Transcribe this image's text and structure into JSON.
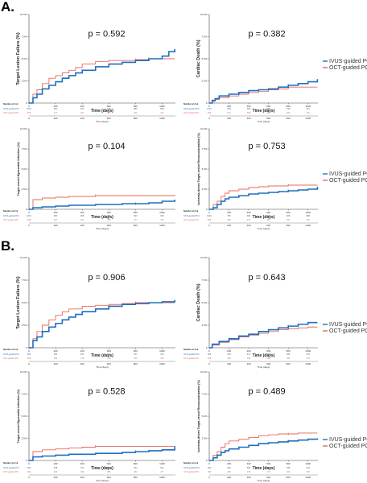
{
  "sections": [
    "A.",
    "B."
  ],
  "legend": {
    "items": [
      {
        "label": "IVUS-guided PCI",
        "color": "#1f6fbf"
      },
      {
        "label": "OCT-guided PCI",
        "color": "#e8685a"
      }
    ]
  },
  "risk": {
    "title": "Number at risk",
    "groups": [
      "IVUS-guided PCI",
      "OCT-guided PCI"
    ]
  },
  "chart_data": [
    {
      "type": "line",
      "section": "A.",
      "ylabel": "Target Lesion Failure (%)",
      "xlabel": "Time (days)",
      "p_value": "p = 0.592",
      "ylim": [
        0,
        10
      ],
      "yticks": [
        "0",
        "2.5%",
        "5.0%",
        "7.5%",
        "10.0%"
      ],
      "xlim": [
        0,
        1100
      ],
      "xticks": [
        "0",
        "200",
        "400",
        "600",
        "800",
        "1000"
      ],
      "series": [
        {
          "name": "IVUS-guided PCI",
          "color": "#1f6fbf",
          "x": [
            0,
            30,
            60,
            100,
            150,
            200,
            250,
            300,
            350,
            400,
            500,
            600,
            700,
            800,
            900,
            1000,
            1050,
            1095
          ],
          "y": [
            0,
            0.6,
            1.0,
            1.6,
            2.0,
            2.4,
            2.8,
            3.1,
            3.4,
            3.7,
            4.1,
            4.4,
            4.6,
            4.8,
            5.0,
            5.3,
            5.8,
            6.1
          ]
        },
        {
          "name": "OCT-guided PCI",
          "color": "#e8685a",
          "x": [
            0,
            30,
            60,
            100,
            150,
            200,
            250,
            300,
            350,
            400,
            500,
            600,
            700,
            800,
            900,
            1000,
            1095
          ],
          "y": [
            0,
            1.0,
            1.5,
            2.2,
            2.8,
            3.1,
            3.4,
            3.7,
            4.0,
            4.4,
            4.7,
            4.8,
            4.8,
            4.9,
            5.0,
            5.0,
            5.0
          ]
        }
      ],
      "at_risk": {
        "IVUS-guided PCI": [
          "1010",
          "950",
          "932",
          "915",
          "889",
          "868"
        ],
        "OCT-guided PCI": [
          "508",
          "477",
          "467",
          "456",
          "442",
          "421"
        ]
      }
    },
    {
      "type": "line",
      "section": "A.",
      "ylabel": "Cardiac Death (%)",
      "xlabel": "Time (days)",
      "p_value": "p = 0.382",
      "ylim": [
        0,
        10
      ],
      "yticks": [
        "0",
        "2.5%",
        "5.0%",
        "7.5%",
        "10.0%"
      ],
      "xlim": [
        0,
        1100
      ],
      "xticks": [
        "0",
        "200",
        "400",
        "600",
        "800",
        "1000"
      ],
      "series": [
        {
          "name": "IVUS-guided PCI",
          "color": "#1f6fbf",
          "x": [
            0,
            30,
            60,
            100,
            200,
            300,
            400,
            500,
            600,
            700,
            800,
            900,
            1000,
            1095
          ],
          "y": [
            0,
            0.3,
            0.5,
            0.8,
            1.0,
            1.2,
            1.4,
            1.5,
            1.6,
            1.8,
            2.0,
            2.2,
            2.4,
            2.7
          ]
        },
        {
          "name": "OCT-guided PCI",
          "color": "#e8685a",
          "x": [
            0,
            30,
            60,
            100,
            200,
            300,
            400,
            500,
            600,
            700,
            800,
            900,
            1000,
            1095
          ],
          "y": [
            0,
            0.2,
            0.4,
            0.6,
            0.8,
            1.0,
            1.2,
            1.3,
            1.5,
            1.6,
            1.8,
            1.8,
            1.8,
            1.8
          ]
        }
      ],
      "at_risk": {
        "IVUS-guided PCI": [
          "1010",
          "980",
          "968",
          "959",
          "939",
          "921"
        ],
        "OCT-guided PCI": [
          "508",
          "501",
          "498",
          "490",
          "482",
          "470"
        ]
      }
    },
    {
      "type": "line",
      "section": "A.",
      "ylabel": "Target-vessel Myocardial Infarction (%)",
      "xlabel": "Time (days)",
      "p_value": "p = 0.104",
      "ylim": [
        0,
        10
      ],
      "yticks": [
        "0",
        "2.5%",
        "5.0%",
        "7.5%",
        "10.0%"
      ],
      "xlim": [
        0,
        1100
      ],
      "xticks": [
        "0",
        "200",
        "400",
        "600",
        "800",
        "1000"
      ],
      "series": [
        {
          "name": "IVUS-guided PCI",
          "color": "#1f6fbf",
          "x": [
            0,
            30,
            100,
            200,
            300,
            400,
            500,
            600,
            700,
            800,
            900,
            1000,
            1095
          ],
          "y": [
            0,
            0.2,
            0.3,
            0.4,
            0.5,
            0.5,
            0.6,
            0.6,
            0.7,
            0.7,
            0.8,
            1.0,
            1.2
          ]
        },
        {
          "name": "OCT-guided PCI",
          "color": "#e8685a",
          "x": [
            0,
            30,
            100,
            200,
            300,
            400,
            500,
            700,
            900,
            1095
          ],
          "y": [
            0,
            1.2,
            1.4,
            1.5,
            1.6,
            1.6,
            1.7,
            1.7,
            1.7,
            1.8
          ]
        }
      ],
      "at_risk": {
        "IVUS-guided PCI": [
          "1010",
          "980",
          "968",
          "951",
          "933",
          "915"
        ],
        "OCT-guided PCI": [
          "508",
          "497",
          "491",
          "483",
          "477",
          "470"
        ]
      }
    },
    {
      "type": "line",
      "section": "A.",
      "ylabel": "Ischemia-driven Target-vessel Revascularization (%)",
      "xlabel": "Time (days)",
      "p_value": "p = 0.753",
      "ylim": [
        0,
        10
      ],
      "yticks": [
        "0",
        "2.5%",
        "5.0%",
        "7.5%",
        "10.0%"
      ],
      "xlim": [
        0,
        1100
      ],
      "xticks": [
        "0",
        "200",
        "400",
        "600",
        "800",
        "1000"
      ],
      "series": [
        {
          "name": "IVUS-guided PCI",
          "color": "#1f6fbf",
          "x": [
            0,
            40,
            80,
            120,
            160,
            200,
            300,
            400,
            500,
            600,
            700,
            800,
            900,
            1000,
            1095
          ],
          "y": [
            0,
            0.2,
            0.6,
            1.0,
            1.3,
            1.5,
            1.7,
            1.9,
            2.0,
            2.1,
            2.2,
            2.3,
            2.4,
            2.5,
            2.8
          ]
        },
        {
          "name": "OCT-guided PCI",
          "color": "#e8685a",
          "x": [
            0,
            40,
            80,
            120,
            160,
            200,
            300,
            400,
            500,
            600,
            700,
            800,
            900,
            1000,
            1095
          ],
          "y": [
            0,
            0.6,
            1.0,
            1.6,
            2.0,
            2.3,
            2.5,
            2.7,
            2.8,
            2.9,
            2.9,
            3.0,
            3.0,
            3.0,
            3.0
          ]
        }
      ],
      "at_risk": {
        "IVUS-guided PCI": [
          "1010",
          "955",
          "939",
          "928",
          "908",
          "888"
        ],
        "OCT-guided PCI": [
          "508",
          "482",
          "474",
          "463",
          "451",
          "440"
        ]
      }
    },
    {
      "type": "line",
      "section": "B.",
      "ylabel": "Target Lesion Failure (%)",
      "xlabel": "Time (days)",
      "p_value": "p = 0.906",
      "ylim": [
        0,
        10
      ],
      "yticks": [
        "0",
        "2.5%",
        "5.0%",
        "7.5%",
        "10.0%"
      ],
      "xlim": [
        0,
        1100
      ],
      "xticks": [
        "0",
        "200",
        "400",
        "600",
        "800",
        "1000"
      ],
      "series": [
        {
          "name": "IVUS-guided PCI",
          "color": "#1f6fbf",
          "x": [
            0,
            30,
            60,
            100,
            150,
            200,
            250,
            300,
            350,
            400,
            500,
            600,
            700,
            800,
            900,
            1000,
            1095
          ],
          "y": [
            0,
            0.8,
            1.2,
            1.8,
            2.3,
            2.7,
            3.1,
            3.4,
            3.7,
            4.0,
            4.3,
            4.6,
            4.8,
            4.9,
            5.0,
            5.1,
            5.3
          ]
        },
        {
          "name": "OCT-guided PCI",
          "color": "#e8685a",
          "x": [
            0,
            30,
            60,
            100,
            150,
            200,
            250,
            300,
            400,
            500,
            600,
            700,
            800,
            900,
            1000,
            1095
          ],
          "y": [
            0,
            1.0,
            1.8,
            2.5,
            3.1,
            3.6,
            4.0,
            4.3,
            4.6,
            4.7,
            4.8,
            4.9,
            5.0,
            5.0,
            5.0,
            5.0
          ]
        }
      ],
      "at_risk": {
        "IVUS-guided PCI": [
          "596",
          "562",
          "551",
          "541",
          "527",
          "514"
        ],
        "OCT-guided PCI": [
          "299",
          "282",
          "276",
          "270",
          "262",
          "250"
        ]
      }
    },
    {
      "type": "line",
      "section": "B.",
      "ylabel": "Cardiac Death (%)",
      "xlabel": "Time (days)",
      "p_value": "p = 0.643",
      "ylim": [
        0,
        10
      ],
      "yticks": [
        "0",
        "2.5%",
        "5.0%",
        "7.5%",
        "10.0%"
      ],
      "xlim": [
        0,
        1100
      ],
      "xticks": [
        "0",
        "200",
        "400",
        "600",
        "800",
        "1000"
      ],
      "series": [
        {
          "name": "IVUS-guided PCI",
          "color": "#1f6fbf",
          "x": [
            0,
            30,
            100,
            200,
            300,
            400,
            500,
            600,
            700,
            800,
            900,
            1000,
            1095
          ],
          "y": [
            0,
            0.4,
            0.7,
            1.0,
            1.3,
            1.5,
            1.8,
            2.0,
            2.2,
            2.4,
            2.6,
            2.8,
            2.8
          ]
        },
        {
          "name": "OCT-guided PCI",
          "color": "#e8685a",
          "x": [
            0,
            30,
            100,
            200,
            300,
            400,
            500,
            600,
            700,
            800,
            900,
            1000,
            1095
          ],
          "y": [
            0,
            0.3,
            0.6,
            0.9,
            1.2,
            1.4,
            1.6,
            1.8,
            2.0,
            2.1,
            2.2,
            2.3,
            2.3
          ]
        }
      ],
      "at_risk": {
        "IVUS-guided PCI": [
          "596",
          "578",
          "571",
          "565",
          "554",
          "543"
        ],
        "OCT-guided PCI": [
          "299",
          "295",
          "292",
          "288",
          "283",
          "276"
        ]
      }
    },
    {
      "type": "line",
      "section": "B.",
      "ylabel": "Target-vessel Myocardial Infarction (%)",
      "xlabel": "Time (days)",
      "p_value": "p = 0.528",
      "ylim": [
        0,
        10
      ],
      "yticks": [
        "0",
        "2.5%",
        "5.0%",
        "7.5%",
        "10.0%"
      ],
      "xlim": [
        0,
        1100
      ],
      "xticks": [
        "0",
        "200",
        "400",
        "600",
        "800",
        "1000"
      ],
      "series": [
        {
          "name": "IVUS-guided PCI",
          "color": "#1f6fbf",
          "x": [
            0,
            30,
            100,
            200,
            300,
            400,
            500,
            600,
            700,
            800,
            900,
            1000,
            1095
          ],
          "y": [
            0,
            0.4,
            0.5,
            0.6,
            0.7,
            0.7,
            0.8,
            0.8,
            0.9,
            1.0,
            1.1,
            1.2,
            1.6
          ]
        },
        {
          "name": "OCT-guided PCI",
          "color": "#e8685a",
          "x": [
            0,
            30,
            100,
            200,
            300,
            400,
            500,
            700,
            900,
            1095
          ],
          "y": [
            0,
            1.0,
            1.2,
            1.3,
            1.4,
            1.5,
            1.6,
            1.6,
            1.6,
            1.6
          ]
        }
      ],
      "at_risk": {
        "IVUS-guided PCI": [
          "596",
          "578",
          "571",
          "563",
          "552",
          "541"
        ],
        "OCT-guided PCI": [
          "299",
          "293",
          "290",
          "286",
          "282",
          "277"
        ]
      }
    },
    {
      "type": "line",
      "section": "B.",
      "ylabel": "Ischemia-driven Target-vessel Revascularization (%)",
      "xlabel": "Time (days)",
      "p_value": "p = 0.489",
      "ylim": [
        0,
        10
      ],
      "yticks": [
        "0",
        "2.5%",
        "5.0%",
        "7.5%",
        "10.0%"
      ],
      "xlim": [
        0,
        1100
      ],
      "xticks": [
        "0",
        "200",
        "400",
        "600",
        "800",
        "1000"
      ],
      "series": [
        {
          "name": "IVUS-guided PCI",
          "color": "#1f6fbf",
          "x": [
            0,
            40,
            80,
            120,
            160,
            200,
            300,
            400,
            500,
            600,
            700,
            800,
            900,
            1000,
            1095
          ],
          "y": [
            0,
            0.3,
            0.6,
            0.9,
            1.1,
            1.3,
            1.5,
            1.7,
            1.9,
            2.0,
            2.1,
            2.2,
            2.3,
            2.4,
            2.5
          ]
        },
        {
          "name": "OCT-guided PCI",
          "color": "#e8685a",
          "x": [
            0,
            40,
            80,
            120,
            160,
            200,
            300,
            400,
            500,
            600,
            700,
            800,
            900,
            1000,
            1095
          ],
          "y": [
            0,
            0.6,
            1.0,
            1.5,
            1.9,
            2.2,
            2.4,
            2.6,
            2.8,
            2.9,
            3.0,
            3.0,
            3.1,
            3.1,
            3.1
          ]
        }
      ],
      "at_risk": {
        "IVUS-guided PCI": [
          "596",
          "562",
          "553",
          "545",
          "535",
          "523"
        ],
        "OCT-guided PCI": [
          "299",
          "283",
          "278",
          "273",
          "266",
          "260"
        ]
      }
    }
  ]
}
